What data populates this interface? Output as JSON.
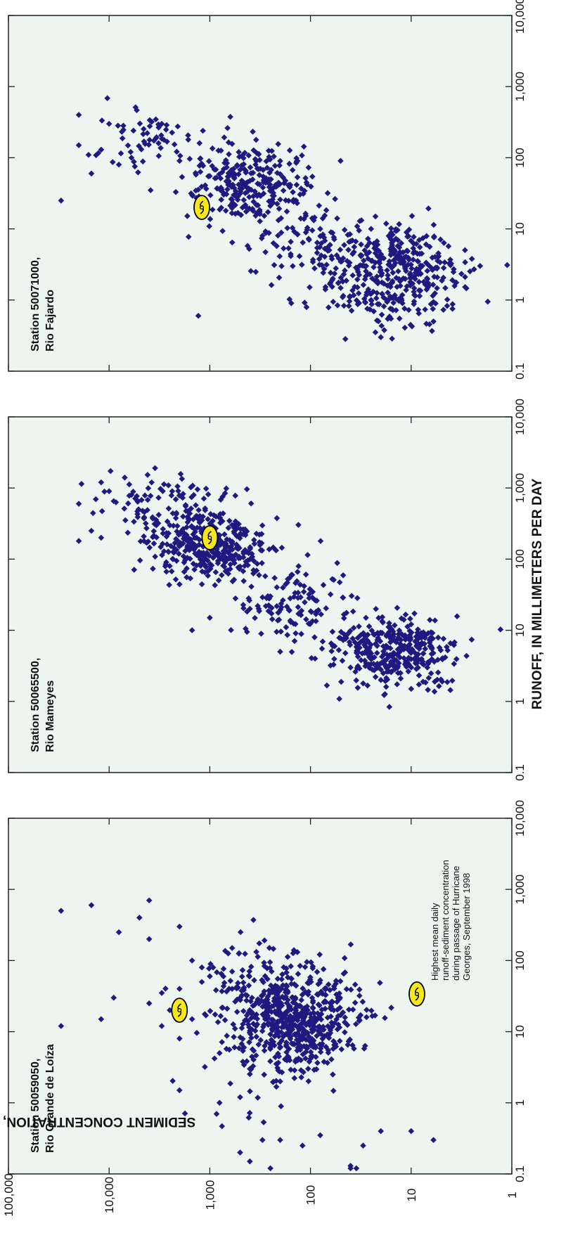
{
  "figure": {
    "x_axis_title": "RUNOFF, IN MILLIMETERS PER DAY",
    "y_axis_title": "SEDIMENT CONCENTRATION, IN MILLIGRAMS PER LITER",
    "x_tick_labels": [
      "0.1",
      "1",
      "10",
      "100",
      "1,000",
      "10,000"
    ],
    "y_tick_labels": [
      "1",
      "10",
      "100",
      "1,000",
      "10,000",
      "100,000"
    ],
    "legend_lines": [
      "Highest mean daily",
      "runoff-sediment concentration",
      "during passage of Hurricane",
      "Georges, September 1998"
    ],
    "colors": {
      "plot_background": "#edf5f0",
      "marker": "#1e1a80",
      "hurricane_fill": "#f7e81c",
      "frame": "#222222"
    },
    "marker_icon": "hurricane-symbol-icon"
  },
  "chart_data": [
    {
      "type": "scatter",
      "title_line1": "Station 50059050,",
      "title_line2": "Rio Grande de Loíza",
      "xlabel": "RUNOFF, IN MILLIMETERS PER DAY",
      "ylabel": "SEDIMENT CONCENTRATION, IN MILLIGRAMS PER LITER",
      "xscale": "log",
      "yscale": "log",
      "xlim": [
        0.1,
        10000
      ],
      "ylim": [
        1,
        100000
      ],
      "grid": false,
      "hurricane_point": [
        20,
        2000
      ],
      "clusters": [
        {
          "cx": 15,
          "cy": 150,
          "sx": 0.35,
          "sy": 0.32,
          "n": 560
        },
        {
          "cx": 3,
          "cy": 300,
          "sx": 0.38,
          "sy": 0.42,
          "n": 40
        },
        {
          "cx": 60,
          "cy": 400,
          "sx": 0.3,
          "sy": 0.3,
          "n": 60
        }
      ],
      "points": [
        [
          0.12,
          250
        ],
        [
          0.15,
          400
        ],
        [
          0.2,
          500
        ],
        [
          0.25,
          120
        ],
        [
          0.3,
          200
        ],
        [
          0.3,
          300
        ],
        [
          0.35,
          80
        ],
        [
          0.12,
          40
        ],
        [
          0.13,
          40
        ],
        [
          0.12,
          35
        ],
        [
          0.25,
          30
        ],
        [
          0.4,
          20
        ],
        [
          0.4,
          10
        ],
        [
          0.3,
          6
        ],
        [
          1,
          800
        ],
        [
          1.2,
          500
        ],
        [
          1.5,
          2000
        ],
        [
          2,
          200
        ],
        [
          2.5,
          60
        ],
        [
          3,
          400
        ],
        [
          5,
          800
        ],
        [
          8,
          2000
        ],
        [
          12,
          30000
        ],
        [
          12,
          3000
        ],
        [
          15,
          12000
        ],
        [
          15,
          1500
        ],
        [
          20,
          2500
        ],
        [
          25,
          4000
        ],
        [
          30,
          9000
        ],
        [
          35,
          3000
        ],
        [
          40,
          2000
        ],
        [
          40,
          600
        ],
        [
          50,
          1200
        ],
        [
          60,
          1000
        ],
        [
          70,
          600
        ],
        [
          80,
          1200
        ],
        [
          100,
          1500
        ],
        [
          150,
          600
        ],
        [
          200,
          4000
        ],
        [
          250,
          8000
        ],
        [
          300,
          2000
        ],
        [
          400,
          5000
        ],
        [
          600,
          15000
        ],
        [
          700,
          4000
        ],
        [
          500,
          30000
        ]
      ]
    },
    {
      "type": "scatter",
      "title_line1": "Station 50065500,",
      "title_line2": "Rio Mameyes",
      "xlabel": "RUNOFF, IN MILLIMETERS PER DAY",
      "ylabel": "SEDIMENT CONCENTRATION, IN MILLIGRAMS PER LITER",
      "xscale": "log",
      "yscale": "log",
      "xlim": [
        0.1,
        10000
      ],
      "ylim": [
        1,
        100000
      ],
      "grid": false,
      "hurricane_point": [
        200,
        1000
      ],
      "clusters": [
        {
          "cx": 5,
          "cy": 15,
          "sx": 0.25,
          "sy": 0.3,
          "n": 360
        },
        {
          "cx": 25,
          "cy": 150,
          "sx": 0.28,
          "sy": 0.28,
          "n": 120
        },
        {
          "cx": 150,
          "cy": 1000,
          "sx": 0.22,
          "sy": 0.3,
          "n": 340
        },
        {
          "cx": 600,
          "cy": 3000,
          "sx": 0.22,
          "sy": 0.3,
          "n": 100
        }
      ],
      "points": [
        [
          1.5,
          10
        ],
        [
          2,
          20
        ],
        [
          3,
          40
        ],
        [
          4,
          90
        ],
        [
          5,
          200
        ],
        [
          6,
          60
        ],
        [
          10,
          1500
        ],
        [
          15,
          1000
        ],
        [
          20,
          400
        ],
        [
          30,
          250
        ],
        [
          80,
          2500
        ],
        [
          180,
          20000
        ],
        [
          200,
          12000
        ],
        [
          250,
          15000
        ],
        [
          180,
          4500
        ],
        [
          600,
          20000
        ],
        [
          900,
          10000
        ],
        [
          1200,
          12000
        ],
        [
          1400,
          7000
        ],
        [
          800,
          6000
        ]
      ]
    },
    {
      "type": "scatter",
      "title_line1": "Station 50071000,",
      "title_line2": "Rio Fajardo",
      "xlabel": "RUNOFF, IN MILLIMETERS PER DAY",
      "ylabel": "SEDIMENT CONCENTRATION, IN MILLIGRAMS PER LITER",
      "xscale": "log",
      "yscale": "log",
      "xlim": [
        0.1,
        10000
      ],
      "ylim": [
        1,
        100000
      ],
      "grid": false,
      "hurricane_point": [
        20,
        1200
      ],
      "clusters": [
        {
          "cx": 2.5,
          "cy": 15,
          "sx": 0.35,
          "sy": 0.35,
          "n": 400
        },
        {
          "cx": 6,
          "cy": 100,
          "sx": 0.3,
          "sy": 0.28,
          "n": 90
        },
        {
          "cx": 40,
          "cy": 400,
          "sx": 0.28,
          "sy": 0.3,
          "n": 280
        },
        {
          "cx": 200,
          "cy": 4000,
          "sx": 0.22,
          "sy": 0.3,
          "n": 60
        }
      ],
      "points": [
        [
          0.3,
          20
        ],
        [
          0.5,
          6
        ],
        [
          0.6,
          1300
        ],
        [
          1,
          25
        ],
        [
          2,
          60
        ],
        [
          3,
          150
        ],
        [
          8,
          300
        ],
        [
          10,
          80
        ],
        [
          25,
          30000
        ],
        [
          60,
          15000
        ],
        [
          80,
          8000
        ],
        [
          100,
          6000
        ],
        [
          150,
          20000
        ],
        [
          300,
          10000
        ],
        [
          400,
          20000
        ],
        [
          300,
          3000
        ],
        [
          90,
          200
        ],
        [
          10,
          25
        ]
      ]
    }
  ]
}
